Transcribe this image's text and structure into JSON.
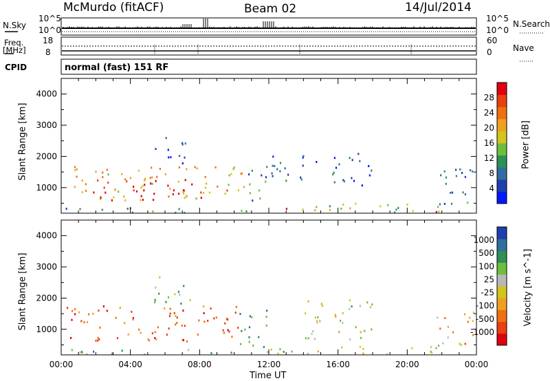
{
  "header": {
    "station": "McMurdo (fitACF)",
    "beam": "Beam 02",
    "date": "14/Jul/2014"
  },
  "top_panels": {
    "nsky_label": "N.Sky",
    "nsky_ticks": [
      "10^5",
      "10^0"
    ],
    "nsearch_label": "N.Search",
    "nsearch_ticks": [
      "10^5",
      "10^0"
    ],
    "freq_label_1": "Freq.",
    "freq_label_2": "[MHz]",
    "freq_ticks": [
      "18",
      "8"
    ],
    "nave_label": "Nave",
    "nave_ticks": [
      "60",
      "0"
    ],
    "cpid_label": "CPID",
    "cpid_value": "normal (fast) 151 RF"
  },
  "chart_data": [
    {
      "type": "heatmap",
      "title": "",
      "xlabel": "Time UT",
      "ylabel": "Slant Range [km]",
      "xlim": [
        0,
        24
      ],
      "ylim": [
        180,
        4500
      ],
      "x_ticks": [
        "00:00",
        "04:00",
        "08:00",
        "12:00",
        "16:00",
        "20:00",
        "00:00"
      ],
      "y_ticks": [
        "1000",
        "2000",
        "3000",
        "4000"
      ],
      "colorbar": {
        "label": "Power [dB]",
        "ticks": [
          "4",
          "8",
          "12",
          "16",
          "20",
          "24",
          "28"
        ],
        "colors": [
          "#0018ff",
          "#1e3fb0",
          "#2f6e9e",
          "#2f8f56",
          "#6cbe3c",
          "#d4c41c",
          "#f0a020",
          "#ee7010",
          "#e84010",
          "#e00010"
        ]
      },
      "regions": [
        {
          "t0": 0.3,
          "t1": 10.6,
          "r0": 620,
          "r1": 1700,
          "level": 0.65
        },
        {
          "t0": 1.8,
          "t1": 8.3,
          "r0": 620,
          "r1": 1300,
          "level": 0.95
        },
        {
          "t0": 0.2,
          "t1": 11.7,
          "r0": 220,
          "r1": 380,
          "level": 0.35
        },
        {
          "t0": 10.6,
          "t1": 12.0,
          "r0": 400,
          "r1": 1700,
          "level": 0.3
        },
        {
          "t0": 11.8,
          "t1": 22.2,
          "r0": 230,
          "r1": 520,
          "level": 0.45
        },
        {
          "t0": 12.3,
          "t1": 13.0,
          "r0": 230,
          "r1": 420,
          "level": 0.95
        },
        {
          "t0": 21.0,
          "t1": 22.3,
          "r0": 230,
          "r1": 380,
          "level": 0.95
        },
        {
          "t0": 21.6,
          "t1": 23.8,
          "r0": 400,
          "r1": 1700,
          "level": 0.3
        },
        {
          "t0": 5.2,
          "t1": 7.2,
          "r0": 1800,
          "r1": 2700,
          "level": 0.15
        },
        {
          "t0": 12.1,
          "t1": 15.2,
          "r0": 1200,
          "r1": 2100,
          "level": 0.2
        },
        {
          "t0": 15.6,
          "t1": 18.0,
          "r0": 1100,
          "r1": 2300,
          "level": 0.2
        }
      ]
    },
    {
      "type": "heatmap",
      "title": "",
      "xlabel": "Time UT",
      "ylabel": "Slant Range [km]",
      "xlim": [
        0,
        24
      ],
      "ylim": [
        180,
        4500
      ],
      "x_ticks": [
        "00:00",
        "04:00",
        "08:00",
        "12:00",
        "16:00",
        "20:00",
        "00:00"
      ],
      "y_ticks": [
        "1000",
        "2000",
        "3000",
        "4000"
      ],
      "colorbar": {
        "label": "Velocity [m s^-1]",
        "ticks": [
          "1000",
          "500",
          "100",
          "25",
          "-25",
          "-100",
          "-500",
          "-1000"
        ],
        "colors": [
          "#e00010",
          "#e84010",
          "#ee7010",
          "#f0a020",
          "#d4c41c",
          "#b8b8b8",
          "#6cbe3c",
          "#2f8f56",
          "#2f6e9e",
          "#1e3fb0"
        ]
      },
      "regions": [
        {
          "t0": 0.3,
          "t1": 10.4,
          "r0": 620,
          "r1": 1800,
          "level": 0.2
        },
        {
          "t0": 0.2,
          "t1": 11.7,
          "r0": 220,
          "r1": 380,
          "level": 0.65
        },
        {
          "t0": 10.0,
          "t1": 11.9,
          "r0": 400,
          "r1": 1700,
          "level": 0.7
        },
        {
          "t0": 11.8,
          "t1": 22.2,
          "r0": 230,
          "r1": 520,
          "level": 0.55
        },
        {
          "t0": 14.0,
          "t1": 18.2,
          "r0": 700,
          "r1": 2000,
          "level": 0.55
        },
        {
          "t0": 21.6,
          "t1": 23.8,
          "r0": 400,
          "r1": 1600,
          "level": 0.35
        },
        {
          "t0": 5.2,
          "t1": 7.5,
          "r0": 1800,
          "r1": 2700,
          "level": 0.6
        }
      ]
    }
  ]
}
